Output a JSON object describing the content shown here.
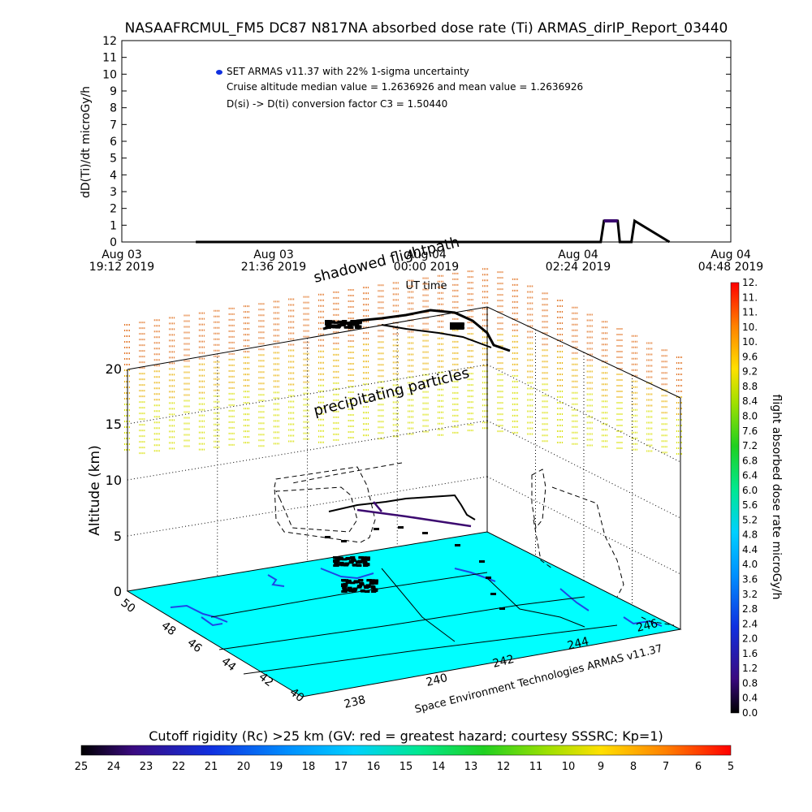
{
  "chart_data": [
    {
      "type": "line",
      "title": "NASAAFRCMUL_FM5 DC87 N817NA absorbed dose rate (Ti) ARMAS_dirIP_Report_03440",
      "xlabel": "UT time",
      "ylabel": "dD(Ti)/dt microGy/h",
      "ylim": [
        0,
        12
      ],
      "y_ticks": [
        "0",
        "1",
        "2",
        "3",
        "4",
        "5",
        "6",
        "7",
        "8",
        "9",
        "10",
        "11",
        "12"
      ],
      "x_ticks": [
        {
          "date": "Aug 03",
          "time": "19:12 2019"
        },
        {
          "date": "Aug 03",
          "time": "21:36 2019"
        },
        {
          "date": "Aug 04",
          "time": "00:00 2019"
        },
        {
          "date": "Aug 04",
          "time": "02:24 2019"
        },
        {
          "date": "Aug 04",
          "time": "04:48 2019"
        }
      ],
      "annotations": [
        "SET ARMAS v11.37 with 22% 1-sigma uncertainty",
        "Cruise altitude median value = 1.2636926 and mean value = 1.2636926",
        "D(si) -> D(ti) conversion factor C3 = 1.50440"
      ],
      "series": [
        {
          "name": "SET ARMAS v11.37 with 22% 1-sigma uncertainty",
          "color": "#000000",
          "x": [
            "Aug 03 20:22",
            "Aug 03 22:00",
            "Aug 04 00:00",
            "Aug 04 02:24",
            "Aug 04 02:45",
            "Aug 04 02:48",
            "Aug 04 03:01",
            "Aug 04 03:03",
            "Aug 04 03:14",
            "Aug 04 03:17",
            "Aug 04 03:50"
          ],
          "values": [
            0,
            0,
            0,
            0,
            0,
            1.26,
            1.26,
            0,
            0,
            1.26,
            0
          ]
        }
      ]
    },
    {
      "type": "scatter",
      "title": "",
      "zlabel": "Altitude (km)",
      "z_ticks": [
        "0",
        "5",
        "10",
        "15",
        "20"
      ],
      "x_ticks": [
        "238",
        "240",
        "242",
        "244",
        "246"
      ],
      "y_ticks": [
        "40",
        "42",
        "44",
        "46",
        "48",
        "50"
      ],
      "annotations": [
        "shadowed flightpath",
        "precipitating particles",
        "Space Environment Technologies ARMAS v11.37"
      ],
      "background_color": "#00ffff",
      "zlim": [
        0,
        22
      ]
    }
  ],
  "colorbar_right": {
    "label": "flight absorbed dose rate microGy/h",
    "ticks": [
      "0.0",
      "0.4",
      "0.8",
      "1.2",
      "1.6",
      "2.0",
      "2.4",
      "2.8",
      "3.2",
      "3.6",
      "4.0",
      "4.4",
      "4.8",
      "5.2",
      "5.6",
      "6.0",
      "6.4",
      "6.8",
      "7.2",
      "7.6",
      "8.0",
      "8.4",
      "8.8",
      "9.2",
      "9.6",
      "10.",
      "10.",
      "11.",
      "11.",
      "12."
    ]
  },
  "colorbar_bottom": {
    "label": "Cutoff rigidity (Rc) >25 km (GV: red = greatest hazard; courtesy SSSRC; Kp=1)",
    "ticks": [
      "25",
      "24",
      "23",
      "22",
      "21",
      "20",
      "19",
      "18",
      "17",
      "16",
      "15",
      "14",
      "13",
      "12",
      "11",
      "10",
      "9",
      "8",
      "7",
      "6",
      "5"
    ]
  },
  "colors": {
    "map": "#00ffff",
    "flight_low": "#3c0a70",
    "coast": "#1e46e6"
  }
}
